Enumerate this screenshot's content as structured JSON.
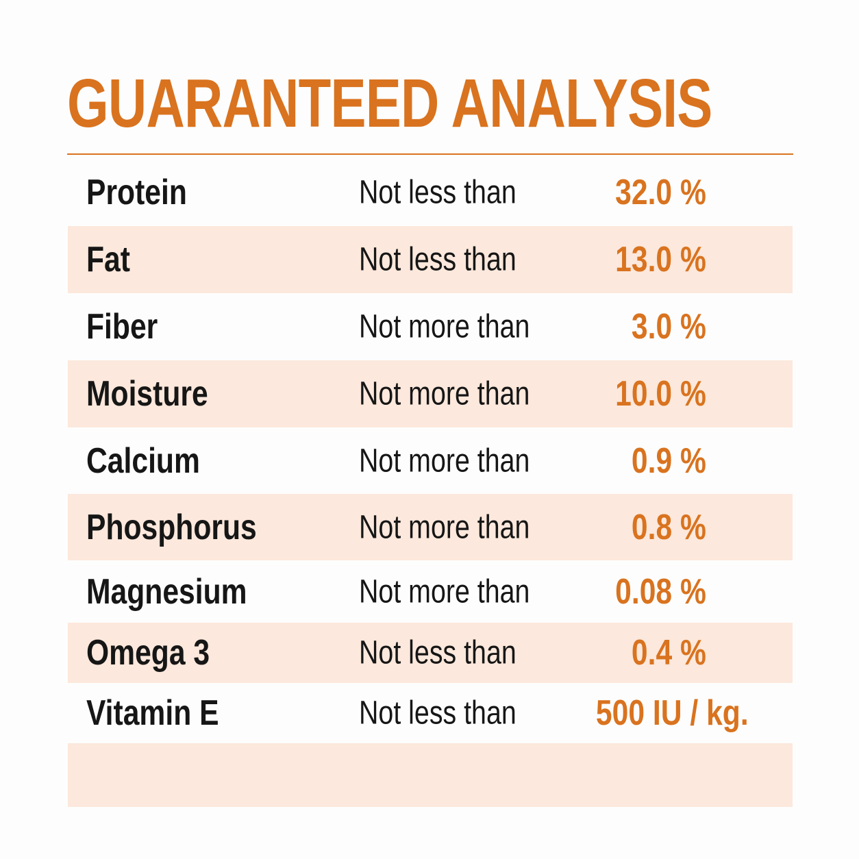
{
  "title": "GUARANTEED ANALYSIS",
  "colors": {
    "accent": "#d9731f",
    "row_shade": "#fce8dc",
    "text": "#161616",
    "background": "#fdfdfd"
  },
  "rows": [
    {
      "name": "Protein",
      "qualifier": "Not less than",
      "value": "32.0 %"
    },
    {
      "name": "Fat",
      "qualifier": "Not less than",
      "value": "13.0 %"
    },
    {
      "name": "Fiber",
      "qualifier": "Not more than",
      "value": "3.0 %"
    },
    {
      "name": "Moisture",
      "qualifier": "Not more than",
      "value": "10.0 %"
    },
    {
      "name": "Calcium",
      "qualifier": "Not more than",
      "value": "0.9 %"
    },
    {
      "name": "Phosphorus",
      "qualifier": "Not more than",
      "value": "0.8 %"
    },
    {
      "name": "Magnesium",
      "qualifier": "Not more than",
      "value": "0.08 %"
    },
    {
      "name": "Omega 3",
      "qualifier": "Not less than",
      "value": "0.4 %"
    },
    {
      "name": "Vitamin E",
      "qualifier": "Not less than",
      "value": "500 IU / kg."
    }
  ]
}
